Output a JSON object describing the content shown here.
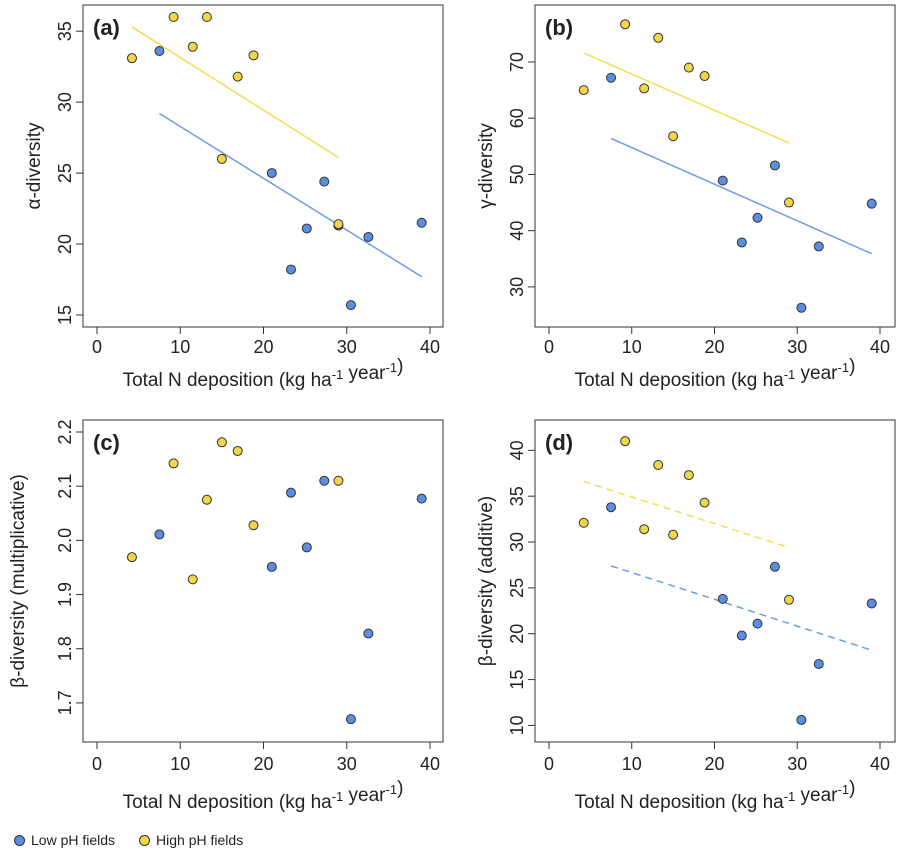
{
  "colors": {
    "low": "#5b8ee0",
    "high": "#f0d648",
    "low_line": "#6d9be6",
    "high_line": "#f0df55",
    "frame": "#333333"
  },
  "legend": [
    {
      "key": "low",
      "label": "Low pH fields"
    },
    {
      "key": "high",
      "label": "High pH fields"
    }
  ],
  "chart_data": [
    {
      "panel": "(a)",
      "type": "scatter",
      "xlabel": "Total N deposition (kg ha-1 year-1)",
      "ylabel": "α-diversity",
      "xlim": [
        0,
        40
      ],
      "ylim": [
        15,
        36
      ],
      "xticks": [
        0,
        10,
        20,
        30,
        40
      ],
      "yticks": [
        15,
        20,
        25,
        30,
        35
      ],
      "series": [
        {
          "key": "low",
          "points": [
            [
              7.5,
              33.6
            ],
            [
              21,
              25.0
            ],
            [
              27.3,
              24.4
            ],
            [
              25.2,
              21.1
            ],
            [
              23.3,
              18.2
            ],
            [
              29,
              21.3
            ],
            [
              32.6,
              20.5
            ],
            [
              39,
              21.5
            ],
            [
              30.5,
              15.7
            ]
          ]
        },
        {
          "key": "high",
          "points": [
            [
              4.2,
              33.1
            ],
            [
              9.2,
              36.0
            ],
            [
              11.5,
              33.9
            ],
            [
              13.2,
              36.0
            ],
            [
              16.9,
              31.8
            ],
            [
              18.8,
              33.3
            ],
            [
              15,
              26.0
            ],
            [
              29,
              21.4
            ]
          ]
        }
      ],
      "trendlines": [
        {
          "key": "low",
          "style": "solid",
          "from": [
            7.5,
            29.2
          ],
          "to": [
            39,
            17.7
          ]
        },
        {
          "key": "high",
          "style": "solid",
          "from": [
            4.2,
            35.3
          ],
          "to": [
            29,
            26.1
          ]
        }
      ]
    },
    {
      "panel": "(b)",
      "type": "scatter",
      "xlabel": "Total N deposition (kg ha-1 year-1)",
      "ylabel": "γ-diversity",
      "xlim": [
        0,
        40
      ],
      "ylim": [
        25,
        78
      ],
      "xticks": [
        0,
        10,
        20,
        30,
        40
      ],
      "yticks": [
        30,
        40,
        50,
        60,
        70
      ],
      "series": [
        {
          "key": "low",
          "points": [
            [
              7.5,
              67.2
            ],
            [
              21,
              48.9
            ],
            [
              27.3,
              51.6
            ],
            [
              25.2,
              42.3
            ],
            [
              23.3,
              37.9
            ],
            [
              32.6,
              37.2
            ],
            [
              39,
              44.8
            ],
            [
              30.5,
              26.3
            ]
          ]
        },
        {
          "key": "high",
          "points": [
            [
              4.2,
              65.0
            ],
            [
              9.2,
              76.7
            ],
            [
              11.5,
              65.3
            ],
            [
              13.2,
              74.3
            ],
            [
              16.9,
              69.0
            ],
            [
              18.8,
              67.5
            ],
            [
              15,
              56.8
            ],
            [
              29,
              45.0
            ]
          ]
        }
      ],
      "trendlines": [
        {
          "key": "low",
          "style": "solid",
          "from": [
            7.5,
            56.4
          ],
          "to": [
            39,
            35.9
          ]
        },
        {
          "key": "high",
          "style": "solid",
          "from": [
            4.2,
            71.6
          ],
          "to": [
            29,
            55.6
          ]
        }
      ]
    },
    {
      "panel": "(c)",
      "type": "scatter",
      "xlabel": "Total N deposition (kg ha-1 year-1)",
      "ylabel": "β-diversity (multiplicative)",
      "xlim": [
        0,
        40
      ],
      "ylim": [
        1.65,
        2.2
      ],
      "xticks": [
        0,
        10,
        20,
        30,
        40
      ],
      "yticks": [
        1.7,
        1.8,
        1.9,
        2.0,
        2.1,
        2.2
      ],
      "series": [
        {
          "key": "low",
          "points": [
            [
              7.5,
              2.011
            ],
            [
              21,
              1.951
            ],
            [
              23.3,
              2.088
            ],
            [
              25.2,
              1.987
            ],
            [
              27.3,
              2.11
            ],
            [
              32.6,
              1.828
            ],
            [
              39,
              2.077
            ],
            [
              30.5,
              1.67
            ]
          ]
        },
        {
          "key": "high",
          "points": [
            [
              4.2,
              1.969
            ],
            [
              9.2,
              2.142
            ],
            [
              11.5,
              1.928
            ],
            [
              13.2,
              2.075
            ],
            [
              15,
              2.181
            ],
            [
              16.9,
              2.165
            ],
            [
              18.8,
              2.028
            ],
            [
              29,
              2.11
            ]
          ]
        }
      ],
      "trendlines": []
    },
    {
      "panel": "(d)",
      "type": "scatter",
      "xlabel": "Total N deposition (kg ha-1 year-1)",
      "ylabel": "β-diversity (additive)",
      "xlim": [
        0,
        40
      ],
      "ylim": [
        9.5,
        42
      ],
      "xticks": [
        0,
        10,
        20,
        30,
        40
      ],
      "yticks": [
        10,
        15,
        20,
        25,
        30,
        35,
        40
      ],
      "series": [
        {
          "key": "low",
          "points": [
            [
              7.5,
              33.8
            ],
            [
              21,
              23.8
            ],
            [
              23.3,
              19.8
            ],
            [
              25.2,
              21.1
            ],
            [
              27.3,
              27.3
            ],
            [
              32.6,
              16.7
            ],
            [
              39,
              23.3
            ],
            [
              30.5,
              10.6
            ]
          ]
        },
        {
          "key": "high",
          "points": [
            [
              4.2,
              32.1
            ],
            [
              9.2,
              41.0
            ],
            [
              11.5,
              31.4
            ],
            [
              13.2,
              38.4
            ],
            [
              15,
              30.8
            ],
            [
              16.9,
              37.3
            ],
            [
              18.8,
              34.3
            ],
            [
              29,
              23.7
            ]
          ]
        }
      ],
      "trendlines": [
        {
          "key": "low",
          "style": "dashed",
          "from": [
            7.5,
            27.4
          ],
          "to": [
            39,
            18.2
          ]
        },
        {
          "key": "high",
          "style": "dashed",
          "from": [
            4.2,
            36.6
          ],
          "to": [
            29,
            29.4
          ]
        }
      ]
    }
  ]
}
